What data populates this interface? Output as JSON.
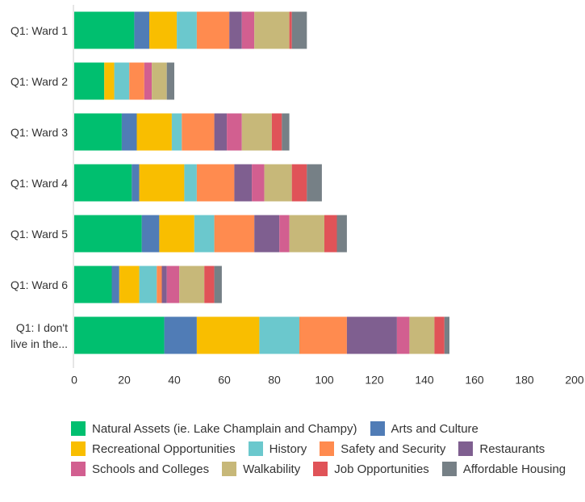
{
  "chart_data": {
    "type": "stacked_barh",
    "categories": [
      "Q1: Ward 1",
      "Q1: Ward 2",
      "Q1: Ward 3",
      "Q1: Ward 4",
      "Q1: Ward 5",
      "Q1: Ward 6",
      "Q1: I don't live in the..."
    ],
    "series": [
      {
        "name": "Natural Assets (ie. Lake Champlain and Champy)",
        "color": "#00bf6f",
        "values": [
          24,
          12,
          19,
          23,
          27,
          15,
          36
        ]
      },
      {
        "name": "Arts and Culture",
        "color": "#507cb6",
        "values": [
          6,
          0,
          6,
          3,
          7,
          3,
          13
        ]
      },
      {
        "name": "Recreational Opportunities",
        "color": "#f9be00",
        "values": [
          11,
          4,
          14,
          18,
          14,
          8,
          25
        ]
      },
      {
        "name": "History",
        "color": "#6bc8cd",
        "values": [
          8,
          6,
          4,
          5,
          8,
          7,
          16
        ]
      },
      {
        "name": "Safety and Security",
        "color": "#ff8b4f",
        "values": [
          13,
          6,
          13,
          15,
          16,
          2,
          19
        ]
      },
      {
        "name": "Restaurants",
        "color": "#7f5f90",
        "values": [
          5,
          0,
          5,
          7,
          10,
          2,
          20
        ]
      },
      {
        "name": "Schools and Colleges",
        "color": "#d25f90",
        "values": [
          5,
          3,
          6,
          5,
          4,
          5,
          5
        ]
      },
      {
        "name": "Walkability",
        "color": "#c7b879",
        "values": [
          14,
          6,
          12,
          11,
          14,
          10,
          10
        ]
      },
      {
        "name": "Job Opportunities",
        "color": "#e05358",
        "values": [
          1,
          0,
          4,
          6,
          5,
          4,
          4
        ]
      },
      {
        "name": "Affordable Housing",
        "color": "#768086",
        "values": [
          6,
          3,
          3,
          6,
          4,
          3,
          2
        ]
      }
    ],
    "xlim": [
      0,
      200
    ],
    "xticks": [
      0,
      20,
      40,
      60,
      80,
      100,
      120,
      140,
      160,
      180,
      200
    ],
    "grid": false
  }
}
